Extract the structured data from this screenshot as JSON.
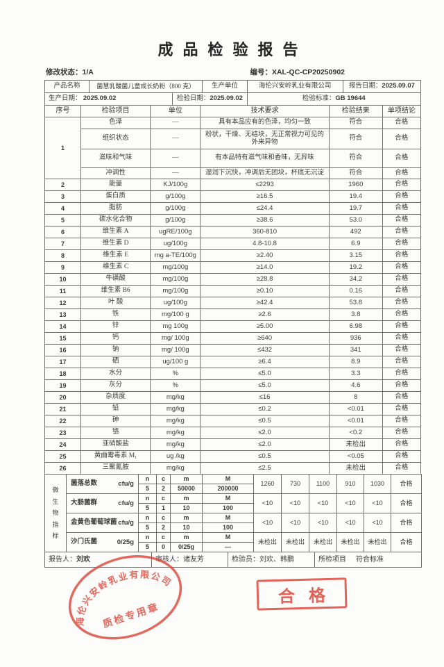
{
  "page": {
    "title": "成品检验报告",
    "revision_label": "修改状态：",
    "revision_value": "1/A",
    "number_label": "编号：",
    "number_value": "XAL-QC-CP20250902"
  },
  "info": {
    "product_name_label": "产品名称",
    "product_name": "菌慧乳酸菌儿童成长奶粉（800 克）",
    "producer_label": "生产单位",
    "producer": "海伦兴安岭乳业有限公司",
    "report_date_label": "报告日期：",
    "report_date": "2025.09.07",
    "production_date_label": "生产日期：",
    "production_date": "2025.09.02",
    "inspection_date_label": "检验日期：",
    "inspection_date": "2025.09.02",
    "standard_label": "检验标准：",
    "standard": "GB 19644"
  },
  "table": {
    "headers": [
      "序号",
      "检验项目",
      "单位",
      "技术要求",
      "检验结果",
      "单项结论"
    ],
    "group1": {
      "no": "1",
      "rows": [
        {
          "item": "色泽",
          "unit": "—",
          "req": "具有本品应有的色泽，均匀一致",
          "result": "符合",
          "conclusion": "合格"
        },
        {
          "item": "组织状态",
          "unit": "—",
          "req": "粉状，干燥、无结块，无正常视力可见的外来异物",
          "result": "符合",
          "conclusion": "合格"
        },
        {
          "item": "滋味和气味",
          "unit": "—",
          "req": "有本品特有滋气味和香味，无异味",
          "result": "符合",
          "conclusion": "合格"
        },
        {
          "item": "冲调性",
          "unit": "—",
          "req": "湿润下沉快，冲调后无团块，杯底无沉淀",
          "result": "符合",
          "conclusion": "合格"
        }
      ]
    },
    "rows": [
      {
        "no": "2",
        "item": "能量",
        "unit": "KJ/100g",
        "req": "≤2293",
        "result": "1960",
        "conclusion": "合格"
      },
      {
        "no": "3",
        "item": "蛋白质",
        "unit": "g/100g",
        "req": "≥16.5",
        "result": "19.4",
        "conclusion": "合格"
      },
      {
        "no": "4",
        "item": "脂肪",
        "unit": "g/100g",
        "req": "≤24.4",
        "result": "19.7",
        "conclusion": "合格"
      },
      {
        "no": "5",
        "item": "碳水化合物",
        "unit": "g/100g",
        "req": "≥38.6",
        "result": "53.0",
        "conclusion": "合格"
      },
      {
        "no": "6",
        "item": "维生素 A",
        "unit": "ugRE/100g",
        "req": "360-810",
        "result": "492",
        "conclusion": "合格"
      },
      {
        "no": "7",
        "item": "维生素 D",
        "unit": "ug/100g",
        "req": "4.8-10.8",
        "result": "6.9",
        "conclusion": "合格"
      },
      {
        "no": "8",
        "item": "维生素 E",
        "unit": "mg a-TE/100g",
        "req": "≥2.40",
        "result": "3.15",
        "conclusion": "合格"
      },
      {
        "no": "9",
        "item": "维生素 C",
        "unit": "mg/100g",
        "req": "≥14.0",
        "result": "19.2",
        "conclusion": "合格"
      },
      {
        "no": "10",
        "item": "牛磺酸",
        "unit": "mg/100g",
        "req": "≥28.8",
        "result": "34.2",
        "conclusion": "合格"
      },
      {
        "no": "11",
        "item": "维生素 B6",
        "unit": "mg/100g",
        "req": "≥0.10",
        "result": "0.16",
        "conclusion": "合格"
      },
      {
        "no": "12",
        "item": "叶 酸",
        "unit": "ug/100g",
        "req": "≥42.4",
        "result": "53.8",
        "conclusion": "合格"
      },
      {
        "no": "13",
        "item": "铁",
        "unit": "mg/100 g",
        "req": "≥2.6",
        "result": "3.8",
        "conclusion": "合格"
      },
      {
        "no": "14",
        "item": "锌",
        "unit": "mg 100g",
        "req": "≥5.00",
        "result": "6.98",
        "conclusion": "合格"
      },
      {
        "no": "15",
        "item": "钙",
        "unit": "mg/ 100g",
        "req": "≥640",
        "result": "936",
        "conclusion": "合格"
      },
      {
        "no": "16",
        "item": "钠",
        "unit": "mg/ 100g",
        "req": "≤432",
        "result": "341",
        "conclusion": "合格"
      },
      {
        "no": "17",
        "item": "硒",
        "unit": "ug/100 g",
        "req": "≥6.4",
        "result": "8.9",
        "conclusion": "合格"
      },
      {
        "no": "18",
        "item": "水分",
        "unit": "%",
        "req": "≤5.0",
        "result": "3.3",
        "conclusion": "合格"
      },
      {
        "no": "19",
        "item": "灰分",
        "unit": "%",
        "req": "≤5.0",
        "result": "4.6",
        "conclusion": "合格"
      },
      {
        "no": "20",
        "item": "杂质度",
        "unit": "mg/kg",
        "req": "≤16",
        "result": "8",
        "conclusion": "合格"
      },
      {
        "no": "21",
        "item": "铅",
        "unit": "mg/kg",
        "req": "≤0.2",
        "result": "<0.01",
        "conclusion": "合格"
      },
      {
        "no": "22",
        "item": "砷",
        "unit": "mg/kg",
        "req": "≤0.5",
        "result": "<0.01",
        "conclusion": "合格"
      },
      {
        "no": "23",
        "item": "铬",
        "unit": "mg/kg",
        "req": "≤2.0",
        "result": "<0.2",
        "conclusion": "合格"
      },
      {
        "no": "24",
        "item": "亚硝酸盐",
        "unit": "mg/kg",
        "req": "≤2.0",
        "result": "未检出",
        "conclusion": "合格"
      },
      {
        "no": "25",
        "item": "黄曲霉毒素 M₁",
        "unit": "ug /kg",
        "req": "≤0.5",
        "result": "<0.05",
        "conclusion": "合格"
      },
      {
        "no": "26",
        "item": "三聚氰胺",
        "unit": "mg/kg",
        "req": "≤2.5",
        "result": "未检出",
        "conclusion": "合格"
      }
    ]
  },
  "micro": {
    "side_label": "微生物指标",
    "col_letters": [
      "n",
      "c",
      "m",
      "M"
    ],
    "rows": [
      {
        "name": "菌落总数",
        "unit": "cfu/g",
        "plan": [
          "5",
          "2",
          "50000",
          "200000"
        ],
        "results": [
          "1260",
          "730",
          "1100",
          "910",
          "1030"
        ],
        "conclusion": "合格"
      },
      {
        "name": "大肠菌群",
        "unit": "cfu/g",
        "plan": [
          "5",
          "1",
          "10",
          "100"
        ],
        "results": [
          "<10",
          "<10",
          "<10",
          "<10",
          "<10"
        ],
        "conclusion": "合格"
      },
      {
        "name": "金黄色葡萄球菌",
        "unit": "cfu/g",
        "plan": [
          "5",
          "2",
          "10",
          "100"
        ],
        "results": [
          "<10",
          "<10",
          "<10",
          "<10",
          "<10"
        ],
        "conclusion": "合格"
      },
      {
        "name": "沙门氏菌",
        "unit": "0/25g",
        "plan": [
          "5",
          "0",
          "0/25g",
          "---"
        ],
        "results": [
          "未检出",
          "未检出",
          "未检出",
          "未检出",
          "未检出"
        ],
        "conclusion": "合格"
      }
    ]
  },
  "footer": {
    "reporter_label": "报告人：",
    "reporter": "刘欢",
    "reviewer_label": "审核人：",
    "reviewer": "诸友芳",
    "inspector_label": "检验员：",
    "inspector": "刘欢、韩鹏",
    "items_label": "所检项目",
    "items_value": "符合标准"
  },
  "stamps": {
    "company_seal_arc_text": "海伦兴安岭乳业有限公司",
    "company_seal_center_text": "质检专用章",
    "qualified_stamp": "合格",
    "stamp_color": "#dd4a3c"
  }
}
